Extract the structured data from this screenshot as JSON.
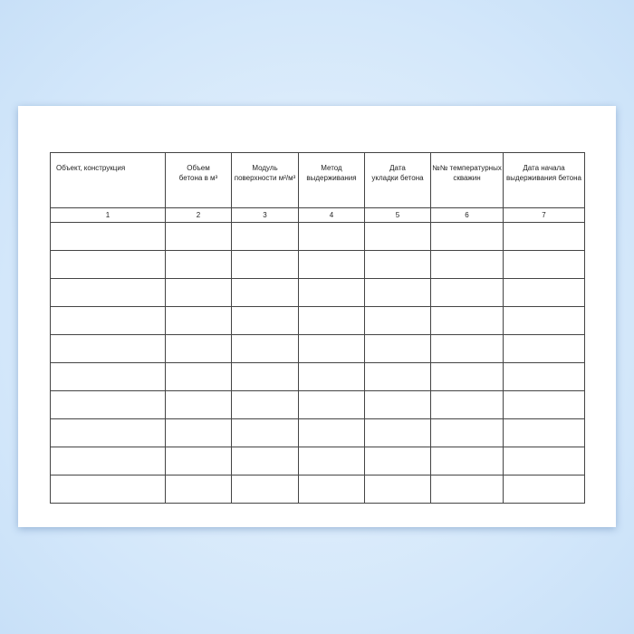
{
  "table": {
    "headers": [
      "Объект, конструкция",
      "Объем\nбетона в м³",
      "Модуль\nповерхности  м²/м³",
      "Метод\nвыдерживания",
      "Дата\nукладки бетона",
      "№№ температурных\nскважин",
      "Дата начала\nвыдерживания бетона"
    ],
    "column_numbers": [
      "1",
      "2",
      "3",
      "4",
      "5",
      "6",
      "7"
    ],
    "empty_rows": 10
  }
}
